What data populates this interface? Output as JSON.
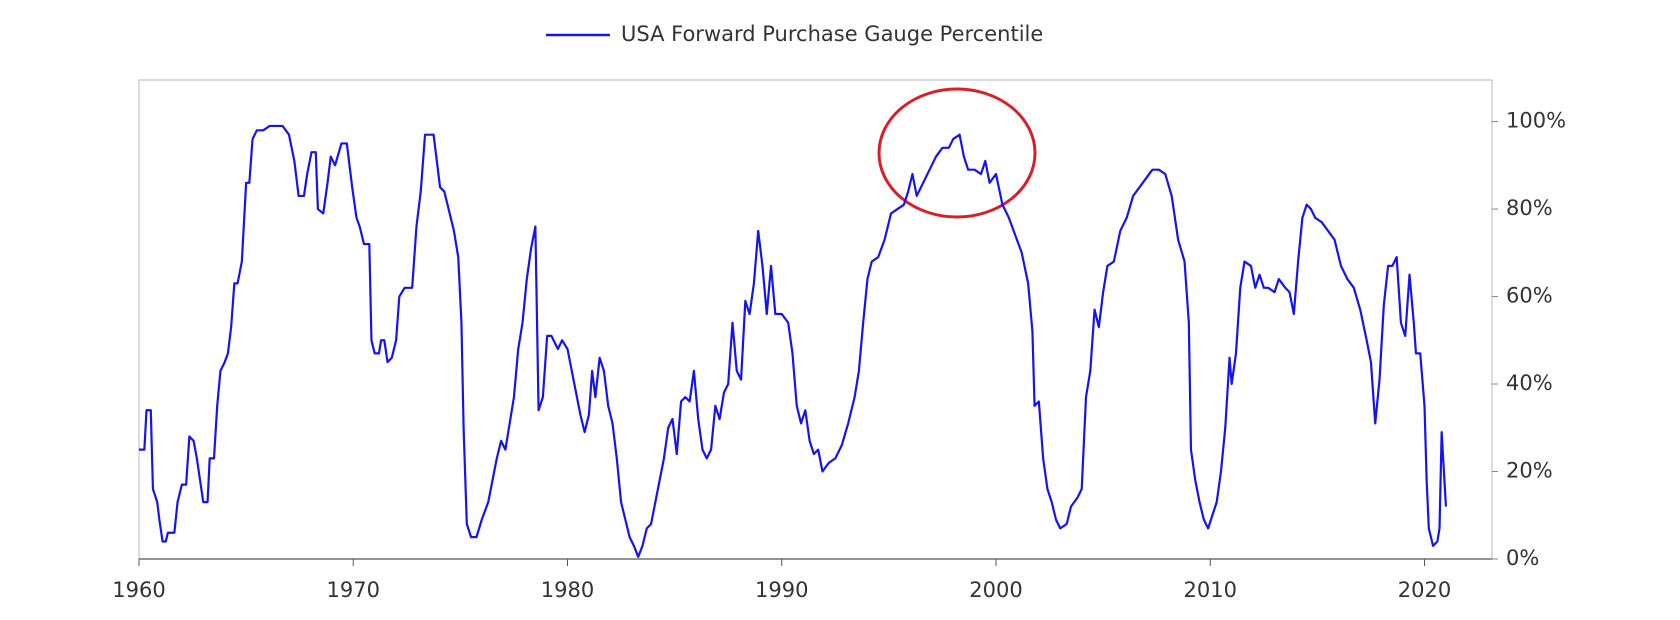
{
  "chart_data": {
    "type": "line",
    "x": [
      1960.0,
      1960.25,
      1960.35,
      1960.55,
      1960.65,
      1960.85,
      1960.95,
      1961.1,
      1961.25,
      1961.35,
      1961.65,
      1961.8,
      1962.0,
      1962.2,
      1962.35,
      1962.55,
      1962.7,
      1962.85,
      1963.0,
      1963.2,
      1963.3,
      1963.5,
      1963.65,
      1963.8,
      1964.0,
      1964.15,
      1964.3,
      1964.45,
      1964.6,
      1964.8,
      1965.0,
      1965.15,
      1965.3,
      1965.5,
      1965.8,
      1966.1,
      1966.4,
      1966.7,
      1967.0,
      1967.25,
      1967.45,
      1967.7,
      1967.85,
      1968.05,
      1968.25,
      1968.35,
      1968.6,
      1968.8,
      1968.95,
      1969.15,
      1969.45,
      1969.7,
      1969.95,
      1970.15,
      1970.3,
      1970.5,
      1970.75,
      1970.85,
      1971.0,
      1971.2,
      1971.3,
      1971.45,
      1971.6,
      1971.8,
      1972.0,
      1972.15,
      1972.4,
      1972.75,
      1972.95,
      1973.15,
      1973.35,
      1973.75,
      1973.9,
      1974.05,
      1974.25,
      1974.45,
      1974.7,
      1974.9,
      1975.05,
      1975.15,
      1975.3,
      1975.5,
      1975.75,
      1976.0,
      1976.3,
      1976.5,
      1976.7,
      1976.9,
      1977.1,
      1977.3,
      1977.5,
      1977.7,
      1977.9,
      1978.1,
      1978.3,
      1978.5,
      1978.65,
      1978.85,
      1979.05,
      1979.25,
      1979.55,
      1979.75,
      1980.0,
      1980.2,
      1980.4,
      1980.6,
      1980.8,
      1981.0,
      1981.15,
      1981.3,
      1981.5,
      1981.7,
      1981.9,
      1982.1,
      1982.3,
      1982.5,
      1982.7,
      1982.9,
      1983.1,
      1983.3,
      1983.5,
      1983.7,
      1983.9,
      1984.1,
      1984.3,
      1984.5,
      1984.7,
      1984.9,
      1985.1,
      1985.3,
      1985.5,
      1985.7,
      1985.9,
      1986.1,
      1986.3,
      1986.5,
      1986.7,
      1986.9,
      1987.1,
      1987.3,
      1987.5,
      1987.7,
      1987.9,
      1988.1,
      1988.3,
      1988.5,
      1988.7,
      1988.9,
      1989.1,
      1989.3,
      1989.5,
      1989.7,
      1990.0,
      1990.3,
      1990.5,
      1990.7,
      1990.9,
      1991.1,
      1991.3,
      1991.5,
      1991.7,
      1991.9,
      1992.2,
      1992.5,
      1992.8,
      1993.1,
      1993.4,
      1993.6,
      1993.8,
      1994.0,
      1994.2,
      1994.5,
      1994.8,
      1995.1,
      1995.4,
      1995.7,
      1995.9,
      1996.1,
      1996.3,
      1996.6,
      1996.9,
      1997.2,
      1997.5,
      1997.8,
      1998.0,
      1998.3,
      1998.5,
      1998.7,
      1999.0,
      1999.3,
      1999.5,
      1999.7,
      2000.0,
      2000.3,
      2000.6,
      2000.9,
      2001.2,
      2001.5,
      2001.7,
      2001.8,
      2002.0,
      2002.2,
      2002.4,
      2002.6,
      2002.8,
      2003.0,
      2003.3,
      2003.5,
      2003.8,
      2004.0,
      2004.2,
      2004.4,
      2004.6,
      2004.8,
      2005.0,
      2005.2,
      2005.5,
      2005.8,
      2006.1,
      2006.4,
      2006.7,
      2007.0,
      2007.3,
      2007.6,
      2007.9,
      2008.2,
      2008.5,
      2008.8,
      2009.0,
      2009.1,
      2009.3,
      2009.5,
      2009.7,
      2009.9,
      2010.1,
      2010.3,
      2010.5,
      2010.7,
      2010.9,
      2011.0,
      2011.2,
      2011.4,
      2011.6,
      2011.9,
      2012.1,
      2012.3,
      2012.5,
      2012.7,
      2013.0,
      2013.2,
      2013.5,
      2013.7,
      2013.9,
      2014.1,
      2014.3,
      2014.5,
      2014.7,
      2014.9,
      2015.2,
      2015.5,
      2015.8,
      2016.1,
      2016.4,
      2016.7,
      2017.0,
      2017.3,
      2017.5,
      2017.7,
      2017.9,
      2018.1,
      2018.3,
      2018.5,
      2018.7,
      2018.9,
      2019.1,
      2019.3,
      2019.5,
      2019.6,
      2019.8,
      2020.0,
      2020.1,
      2020.2,
      2020.4,
      2020.6,
      2020.7,
      2020.8,
      2021.0
    ],
    "series": [
      {
        "name": "USA Forward Purchase Gauge Percentile",
        "color": "#1414f0",
        "values": [
          25,
          25,
          34,
          34,
          16,
          13,
          9,
          4,
          4,
          6,
          6,
          13,
          17,
          17,
          28,
          27,
          23,
          18,
          13,
          13,
          23,
          23,
          35,
          43,
          45,
          47,
          53,
          63,
          63,
          68,
          86,
          86,
          96,
          98,
          98,
          99,
          99,
          99,
          97,
          91,
          83,
          83,
          88,
          93,
          93,
          80,
          79,
          86,
          92,
          90,
          95,
          95,
          85,
          78,
          76,
          72,
          72,
          50,
          47,
          47,
          50,
          50,
          45,
          46,
          50,
          60,
          62,
          62,
          76,
          84,
          97,
          97,
          91,
          85,
          84,
          80,
          75,
          69,
          54,
          30,
          8,
          5,
          5,
          9,
          13,
          18,
          23,
          27,
          25,
          31,
          37,
          48,
          54,
          64,
          71,
          76,
          34,
          37,
          51,
          51,
          48,
          50,
          48,
          43,
          38,
          33,
          29,
          33,
          43,
          37,
          46,
          43,
          35,
          31,
          23,
          13,
          9,
          5,
          3,
          0.5,
          3,
          7,
          8,
          13,
          18,
          23,
          30,
          32,
          24,
          36,
          37,
          36,
          43,
          32,
          25,
          23,
          25,
          35,
          32,
          38,
          40,
          54,
          43,
          41,
          59,
          56,
          63,
          75,
          67,
          56,
          67,
          56,
          56,
          54,
          47,
          35,
          31,
          34,
          27,
          24,
          25,
          20,
          22,
          23,
          26,
          31,
          37,
          43,
          54,
          64,
          68,
          69,
          73,
          79,
          80,
          81,
          84,
          88,
          83,
          86,
          89,
          92,
          94,
          94,
          96,
          97,
          92,
          89,
          89,
          88,
          91,
          86,
          88,
          81,
          78,
          74,
          70,
          63,
          52,
          35,
          36,
          23,
          16,
          13,
          9,
          7,
          8,
          12,
          14,
          16,
          37,
          43,
          57,
          53,
          61,
          67,
          68,
          75,
          78,
          83,
          85,
          87,
          89,
          89,
          88,
          83,
          73,
          68,
          54,
          25,
          18,
          13,
          9,
          7,
          10,
          13,
          20,
          30,
          46,
          40,
          47,
          62,
          68,
          67,
          62,
          65,
          62,
          62,
          61,
          64,
          62,
          61,
          56,
          68,
          78,
          81,
          80,
          78,
          77,
          75,
          73,
          67,
          64,
          62,
          57,
          50,
          45,
          31,
          41,
          58,
          67,
          67,
          69,
          54,
          51,
          65,
          54,
          47,
          47,
          35,
          18,
          7,
          3,
          4,
          7,
          29,
          12
        ]
      }
    ],
    "xlim": [
      1960,
      2023.15
    ],
    "ylim": [
      0,
      109.5
    ],
    "xticks": [
      1960,
      1970,
      1980,
      1990,
      2000,
      2010,
      2020
    ],
    "yticks": [
      {
        "value": 0,
        "label": "0%"
      },
      {
        "value": 20,
        "label": "20%"
      },
      {
        "value": 40,
        "label": "40%"
      },
      {
        "value": 60,
        "label": "60%"
      },
      {
        "value": 80,
        "label": "80%"
      },
      {
        "value": 100,
        "label": "100%"
      }
    ],
    "legend": "top"
  }
}
